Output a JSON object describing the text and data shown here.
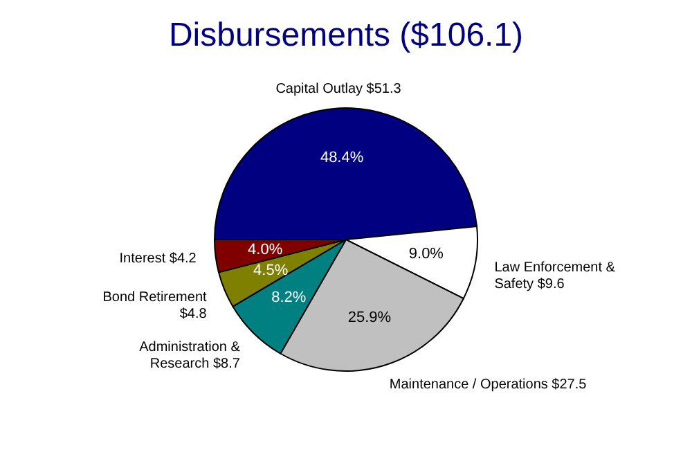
{
  "chart_data": {
    "type": "pie",
    "title": "Disbursements ($106.1)",
    "categories": [
      "Capital Outlay  $51.3",
      "Law Enforcement &\nSafety  $9.6",
      "Maintenance / Operations  $27.5",
      "Administration &\nResearch  $8.7",
      "Bond Retirement\n$4.8",
      "Interest  $4.2"
    ],
    "values": [
      48.4,
      9.0,
      25.9,
      8.2,
      4.5,
      4.0
    ],
    "value_labels": [
      "48.4%",
      "9.0%",
      "25.9%",
      "8.2%",
      "4.5%",
      "4.0%"
    ],
    "colors": [
      "#000080",
      "#ffffff",
      "#c0c0c0",
      "#008080",
      "#808000",
      "#800000"
    ]
  }
}
